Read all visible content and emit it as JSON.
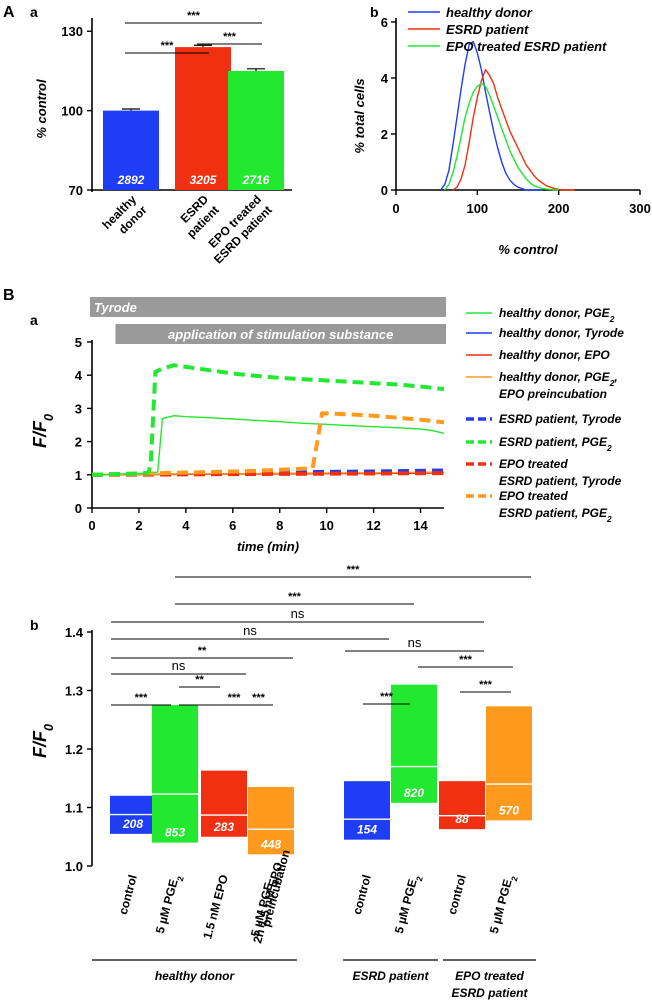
{
  "panel_labels": {
    "A": "A",
    "B": "B",
    "Aa": "a",
    "Ab": "b",
    "Ba": "a",
    "Bb": "b"
  },
  "colors": {
    "healthy": "#1f3df5",
    "esrd": "#f03010",
    "epo_esrd": "#22e830",
    "orange": "#ff9a1e",
    "band": "#9a9a9a"
  },
  "chart_data": [
    {
      "id": "Aa",
      "type": "bar",
      "title": "",
      "ylabel": "% control",
      "ylim": [
        70,
        135
      ],
      "yticks": [
        70,
        100,
        130
      ],
      "categories": [
        "healthy donor",
        "ESRD patient",
        "EPO treated ESRD patient"
      ],
      "category_lines": [
        [
          "healthy",
          "donor"
        ],
        [
          "ESRD",
          "patient"
        ],
        [
          "EPO treated",
          "ESRD patient"
        ]
      ],
      "values": [
        100,
        124,
        115
      ],
      "errors": [
        0.6,
        0.7,
        0.8
      ],
      "counts": [
        "2892",
        "3205",
        "2716"
      ],
      "significance": [
        {
          "from": 0,
          "to": 2,
          "label": "***"
        },
        {
          "from": 0,
          "to": 1,
          "label": "***"
        },
        {
          "from": 1,
          "to": 2,
          "label": "***"
        }
      ]
    },
    {
      "id": "Ab",
      "type": "line",
      "title": "",
      "xlabel": "% control",
      "ylabel": "% total cells",
      "xlim": [
        0,
        300
      ],
      "ylim": [
        0,
        6
      ],
      "xticks": [
        0,
        100,
        200,
        300
      ],
      "yticks": [
        0,
        2,
        4,
        6
      ],
      "legend": "top-right",
      "series": [
        {
          "name": "healthy donor",
          "color": "#1f3df5",
          "x": [
            55,
            60,
            65,
            70,
            75,
            80,
            85,
            90,
            95,
            100,
            105,
            110,
            115,
            120,
            125,
            130,
            135,
            140,
            145,
            150,
            155,
            160,
            165,
            170,
            175,
            180
          ],
          "y": [
            0,
            0.2,
            0.7,
            1.6,
            2.6,
            3.6,
            4.5,
            5.2,
            5.3,
            4.9,
            4.3,
            3.5,
            2.8,
            2.1,
            1.5,
            1.0,
            0.6,
            0.35,
            0.2,
            0.1,
            0.05,
            0,
            0,
            0,
            0,
            0
          ]
        },
        {
          "name": "ESRD patient",
          "color": "#f03010",
          "x": [
            70,
            75,
            80,
            85,
            90,
            95,
            100,
            105,
            110,
            115,
            120,
            125,
            130,
            135,
            140,
            145,
            150,
            155,
            160,
            165,
            170,
            175,
            180,
            185,
            190,
            195,
            200,
            210,
            220
          ],
          "y": [
            0,
            0.1,
            0.4,
            0.9,
            1.7,
            2.6,
            3.3,
            3.9,
            4.3,
            4.1,
            3.8,
            3.3,
            2.9,
            2.5,
            2.1,
            1.8,
            1.5,
            1.2,
            0.9,
            0.7,
            0.5,
            0.35,
            0.25,
            0.15,
            0.1,
            0.05,
            0.02,
            0,
            0
          ]
        },
        {
          "name": "EPO treated ESRD patient",
          "color": "#22e830",
          "x": [
            60,
            65,
            70,
            75,
            80,
            85,
            90,
            95,
            100,
            105,
            110,
            115,
            120,
            125,
            130,
            135,
            140,
            145,
            150,
            155,
            160,
            165,
            170,
            175,
            180,
            190,
            200
          ],
          "y": [
            0,
            0.2,
            0.6,
            1.2,
            1.9,
            2.6,
            3.1,
            3.5,
            3.7,
            3.8,
            3.7,
            3.4,
            3.0,
            2.6,
            2.2,
            1.8,
            1.4,
            1.1,
            0.8,
            0.6,
            0.4,
            0.25,
            0.15,
            0.1,
            0.05,
            0.02,
            0
          ]
        }
      ]
    },
    {
      "id": "Ba",
      "type": "line",
      "title": "",
      "xlabel": "time (min)",
      "ylabel": "F/F0",
      "xlim": [
        0,
        15
      ],
      "ylim": [
        0,
        5
      ],
      "xticks": [
        0,
        2,
        4,
        6,
        8,
        10,
        12,
        14
      ],
      "yticks": [
        0,
        1,
        2,
        3,
        4,
        5
      ],
      "bands": [
        {
          "label": "Tyrode",
          "x0": 0,
          "x1": 15
        },
        {
          "label": "application of stimulation substance",
          "x0": 1,
          "x1": 15
        }
      ],
      "legend": "right",
      "series": [
        {
          "name": "healthy donor, PGE2",
          "color": "#22e830",
          "style": "solid",
          "x": [
            0,
            1,
            2,
            2.6,
            2.8,
            3,
            3.5,
            4,
            5,
            6,
            7,
            8,
            9,
            10,
            11,
            12,
            13,
            14,
            14.5,
            15
          ],
          "y": [
            1.0,
            1.02,
            1.04,
            1.06,
            1.08,
            2.7,
            2.78,
            2.75,
            2.72,
            2.68,
            2.64,
            2.6,
            2.55,
            2.52,
            2.48,
            2.45,
            2.42,
            2.38,
            2.33,
            2.25
          ]
        },
        {
          "name": "healthy donor, Tyrode",
          "color": "#1f3df5",
          "style": "solid",
          "x": [
            0,
            3,
            6,
            9,
            12,
            15
          ],
          "y": [
            1.0,
            1.02,
            1.03,
            1.04,
            1.05,
            1.06
          ]
        },
        {
          "name": "healthy donor, EPO",
          "color": "#f03010",
          "style": "solid",
          "x": [
            0,
            3,
            6,
            9,
            12,
            15
          ],
          "y": [
            1.0,
            1.01,
            1.02,
            1.03,
            1.04,
            1.05
          ]
        },
        {
          "name": "healthy donor, PGE2, EPO preincubation",
          "color": "#ff9a1e",
          "style": "solid",
          "x": [
            0,
            3,
            6,
            9,
            12,
            15
          ],
          "y": [
            1.0,
            1.02,
            1.03,
            1.05,
            1.06,
            1.08
          ]
        },
        {
          "name": "ESRD patient, Tyrode",
          "color": "#1f3df5",
          "style": "dashed",
          "x": [
            0,
            3,
            6,
            9,
            12,
            15
          ],
          "y": [
            1.0,
            1.03,
            1.06,
            1.08,
            1.1,
            1.13
          ]
        },
        {
          "name": "ESRD patient, PGE2",
          "color": "#22e830",
          "style": "dashed",
          "x": [
            0,
            1,
            2,
            2.4,
            2.5,
            2.7,
            3,
            3.5,
            4,
            5,
            6,
            7,
            8,
            9,
            10,
            11,
            12,
            13,
            14,
            15
          ],
          "y": [
            1.0,
            1.02,
            1.04,
            1.06,
            1.3,
            4.1,
            4.2,
            4.3,
            4.25,
            4.15,
            4.05,
            3.98,
            3.92,
            3.88,
            3.84,
            3.8,
            3.76,
            3.72,
            3.66,
            3.58
          ]
        },
        {
          "name": "EPO treated ESRD patient, Tyrode",
          "color": "#f03010",
          "style": "dashed",
          "x": [
            0,
            3,
            6,
            9,
            12,
            15
          ],
          "y": [
            1.0,
            1.01,
            1.02,
            1.03,
            1.04,
            1.05
          ]
        },
        {
          "name": "EPO treated ESRD patient, PGE2",
          "color": "#ff9a1e",
          "style": "dashed",
          "x": [
            0,
            1,
            2,
            3,
            4,
            5,
            6,
            7,
            8,
            9,
            9.4,
            9.6,
            9.8,
            10,
            11,
            12,
            13,
            14,
            15
          ],
          "y": [
            1.0,
            1.02,
            1.03,
            1.05,
            1.07,
            1.08,
            1.1,
            1.12,
            1.15,
            1.18,
            1.2,
            2.0,
            2.85,
            2.85,
            2.82,
            2.78,
            2.72,
            2.66,
            2.58
          ]
        }
      ]
    },
    {
      "id": "Bb",
      "type": "bar",
      "title": "",
      "ylabel": "F/F0",
      "ylim": [
        1.0,
        1.4
      ],
      "yticks": [
        1.0,
        1.1,
        1.2,
        1.3,
        1.4
      ],
      "categories": [
        "control",
        "5 µM PGE2",
        "1.5 nM EPO",
        "5 µM PGE2, 2h 1.5 nM EPO preincubation",
        "control",
        "5 µM PGE2",
        "control",
        "5 µM PGE2"
      ],
      "groups": [
        {
          "label": "healthy donor",
          "members": [
            0,
            1,
            2,
            3
          ]
        },
        {
          "label": "ESRD patient",
          "members": [
            4,
            5
          ]
        },
        {
          "label": "EPO treated ESRD patient",
          "members": [
            6,
            7
          ]
        }
      ],
      "series": [
        {
          "name": "median",
          "values": [
            1.088,
            1.123,
            1.087,
            1.063,
            1.08,
            1.17,
            1.086,
            1.14
          ]
        },
        {
          "name": "lower",
          "values": [
            1.055,
            1.04,
            1.05,
            1.02,
            1.045,
            1.108,
            1.063,
            1.078
          ]
        },
        {
          "name": "upper",
          "values": [
            1.12,
            1.275,
            1.163,
            1.135,
            1.145,
            1.31,
            1.145,
            1.273
          ]
        }
      ],
      "colors": [
        "#1f3df5",
        "#22e830",
        "#f03010",
        "#ff9a1e",
        "#1f3df5",
        "#22e830",
        "#f03010",
        "#ff9a1e"
      ],
      "counts": [
        "208",
        "853",
        "283",
        "448",
        "154",
        "820",
        "88",
        "570"
      ],
      "significance": [
        {
          "from": 1,
          "to": 7,
          "label": "***"
        },
        {
          "from": 1,
          "to": 5,
          "label": "***"
        },
        {
          "from": 0,
          "to": 6,
          "label": "ns"
        },
        {
          "from": 0,
          "to": 4,
          "label": "ns"
        },
        {
          "from": 4,
          "to": 6,
          "label": "ns"
        },
        {
          "from": 0,
          "to": 3,
          "label": "**"
        },
        {
          "from": 0,
          "to": 2,
          "label": "ns"
        },
        {
          "from": 5,
          "to": 7,
          "label": "***"
        },
        {
          "from": 1,
          "to": 2,
          "label": "**"
        },
        {
          "from": 4,
          "to": 5,
          "label": "***"
        },
        {
          "from": 2,
          "to": 3,
          "label": "***"
        },
        {
          "from": 0,
          "to": 1,
          "label": "***"
        },
        {
          "from": 1,
          "to": 3,
          "label": "***"
        },
        {
          "from": 6,
          "to": 7,
          "label": "***"
        }
      ]
    }
  ]
}
